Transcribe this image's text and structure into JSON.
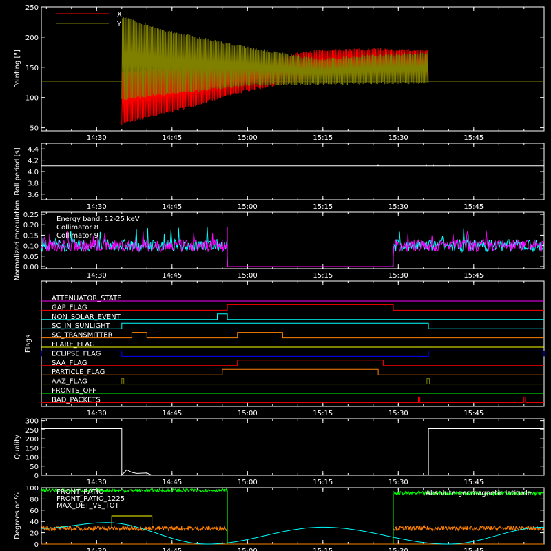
{
  "colors": {
    "background": "#000000",
    "axis": "#ffffff",
    "x_red": "#ff0000",
    "y_olive": "#808000",
    "cyan": "#00ffff",
    "magenta": "#ff00ff",
    "green": "#00ff00",
    "orange": "#ff8000",
    "yellow": "#ffff00",
    "blue": "#0000ff"
  },
  "time_axis": {
    "range": [
      "14:19",
      "15:59"
    ],
    "tick_labels": [
      "14:30",
      "14:45",
      "15:00",
      "15:15",
      "15:30",
      "15:45"
    ]
  },
  "chart_data": [
    {
      "id": "pointing",
      "type": "line",
      "ylabel": "Pointing [\"]",
      "ylim": [
        45,
        250
      ],
      "yticks": [
        "50",
        "100",
        "150",
        "200",
        "250"
      ],
      "legend": [
        "X",
        "Y"
      ],
      "series": [
        {
          "name": "X",
          "color": "#ff0000",
          "x": [
            "14:35",
            "14:45",
            "15:00",
            "15:10",
            "15:15",
            "15:25",
            "15:36"
          ],
          "low": [
            55,
            75,
            110,
            125,
            132,
            133,
            133
          ],
          "high": [
            145,
            150,
            155,
            175,
            180,
            182,
            180
          ]
        },
        {
          "name": "Y",
          "color": "#808000",
          "x": [
            "14:35",
            "14:45",
            "15:00",
            "15:10",
            "15:15",
            "15:25",
            "15:36"
          ],
          "low": [
            95,
            105,
            118,
            120,
            120,
            122,
            122
          ],
          "high": [
            235,
            210,
            185,
            170,
            165,
            172,
            175
          ]
        }
      ],
      "baseline": 127
    },
    {
      "id": "roll_period",
      "type": "line",
      "ylabel": "Roll period [s]",
      "ylim": [
        3.5,
        4.5
      ],
      "yticks": [
        "3.6",
        "3.8",
        "4.0",
        "4.2",
        "4.4"
      ],
      "value": 4.1
    },
    {
      "id": "modulation",
      "type": "line",
      "ylabel": "Normalized modulation",
      "ylim": [
        -0.01,
        0.26
      ],
      "yticks": [
        "0.00",
        "0.05",
        "0.10",
        "0.15",
        "0.20",
        "0.25"
      ],
      "annotations": [
        "Energy band: 12-25 keV",
        "Collimator 8",
        "Collimator 9"
      ],
      "series": [
        {
          "name": "Collimator 8",
          "color": "#00ffff",
          "mean": 0.1
        },
        {
          "name": "Collimator 9",
          "color": "#ff00ff",
          "mean": 0.1
        }
      ],
      "gap": [
        "14:56",
        "15:29"
      ]
    },
    {
      "id": "flags",
      "type": "line",
      "ylabel": "Flags",
      "rows": [
        {
          "label": "ATTENUATOR_STATE",
          "color": "#ff00ff",
          "on": []
        },
        {
          "label": "GAP_FLAG",
          "color": "#ff0000",
          "on": [
            [
              "14:56",
              "15:29"
            ]
          ]
        },
        {
          "label": "NON_SOLAR_EVENT",
          "color": "#00ffff",
          "on": [
            [
              "14:54",
              "14:56"
            ]
          ]
        },
        {
          "label": "SC_IN_SUNLIGHT",
          "color": "#00ffff",
          "on": [
            [
              "14:35",
              "15:36"
            ]
          ]
        },
        {
          "label": "SC_TRANSMITTER",
          "color": "#ff8000",
          "on": [
            [
              "14:37",
              "14:40"
            ],
            [
              "14:58",
              "15:07"
            ]
          ]
        },
        {
          "label": "FLARE_FLAG",
          "color": "#ffff00",
          "on": []
        },
        {
          "label": "ECLIPSE_FLAG",
          "color": "#0000ff",
          "on": [
            [
              "14:19",
              "14:35"
            ],
            [
              "15:36",
              "15:59"
            ]
          ]
        },
        {
          "label": "SAA_FLAG",
          "color": "#ff0000",
          "on": [
            [
              "14:58",
              "15:27"
            ]
          ]
        },
        {
          "label": "PARTICLE_FLAG",
          "color": "#ff8000",
          "on": [
            [
              "14:55",
              "15:26"
            ]
          ]
        },
        {
          "label": "AAZ_FLAG",
          "color": "#808000",
          "on": [
            [
              "14:35",
              "14:35.4"
            ],
            [
              "15:35.7",
              "15:36.2"
            ]
          ]
        },
        {
          "label": "FRONTS_OFF",
          "color": "#00ff00",
          "on": []
        },
        {
          "label": "BAD_PACKETS",
          "color": "#ff0000",
          "on": [
            [
              "15:34",
              "15:34.3"
            ],
            [
              "15:55",
              "15:55.3"
            ]
          ]
        }
      ]
    },
    {
      "id": "quality",
      "type": "line",
      "ylabel": "Quality",
      "ylim": [
        0,
        310
      ],
      "yticks": [
        "0",
        "50",
        "100",
        "150",
        "200",
        "250",
        "300"
      ],
      "x": [
        "14:19",
        "14:35",
        "14:35",
        "14:36",
        "14:37",
        "14:38",
        "14:40",
        "14:41",
        "15:36",
        "15:36",
        "15:59"
      ],
      "values": [
        255,
        255,
        0,
        30,
        15,
        10,
        12,
        0,
        0,
        255,
        255
      ]
    },
    {
      "id": "degrees",
      "type": "line",
      "ylabel": "Degrees or %",
      "ylim": [
        0,
        100
      ],
      "yticks": [
        "0",
        "20",
        "40",
        "60",
        "80",
        "100"
      ],
      "legend": [
        "FRONT_RATIO",
        "FRONT_RATIO_1225",
        "MAX_DET_VS_TOT"
      ],
      "annotation": "Absolute geomagnetic latitude",
      "series": [
        {
          "name": "FRONT_RATIO",
          "color": "#00ff00",
          "segments": [
            [
              "14:19",
              "14:56",
              95
            ],
            [
              "15:29",
              "15:59",
              90
            ]
          ]
        },
        {
          "name": "FRONT_RATIO_1225",
          "color": "#ffff00",
          "x": [
            "14:33",
            "14:41"
          ],
          "value": 50
        },
        {
          "name": "MAX_DET_VS_TOT",
          "color": "#ff8000",
          "segments": [
            [
              "14:19",
              "14:56",
              28
            ],
            [
              "15:29",
              "15:59",
              28
            ]
          ]
        },
        {
          "name": "Absolute geomagnetic latitude",
          "color": "#00ffff",
          "x": [
            "14:19",
            "14:32",
            "14:52",
            "15:15",
            "15:40",
            "15:59"
          ],
          "values": [
            28,
            38,
            0,
            30,
            0,
            30
          ]
        }
      ]
    }
  ]
}
